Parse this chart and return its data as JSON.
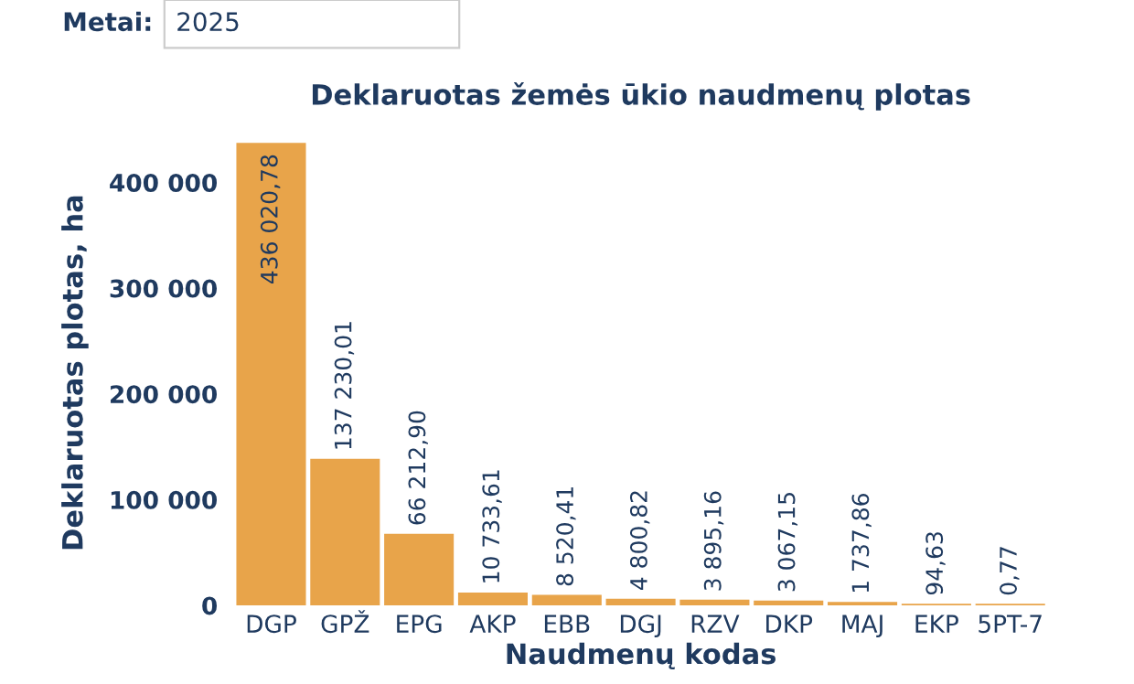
{
  "chart_data": {
    "type": "bar",
    "title": "Deklaruotas žemės ūkio naudmenų plotas",
    "xlabel": "Naudmenų kodas",
    "ylabel": "Deklaruotas plotas, ha",
    "annotations": [
      "Metai:",
      "2025"
    ],
    "categories": [
      "DGP",
      "GPŽ",
      "EPG",
      "AKP",
      "EBB",
      "DGJ",
      "RZV",
      "DKP",
      "MAJ",
      "EKP",
      "5PT-7"
    ],
    "values": [
      436020.78,
      137230.01,
      66212.9,
      10733.61,
      8520.41,
      4800.82,
      3895.16,
      3067.15,
      1737.86,
      94.63,
      0.77
    ],
    "value_labels": [
      "436 020,78",
      "137 230,01",
      "66 212,90",
      "10 733,61",
      "8 520,41",
      "4 800,82",
      "3 895,16",
      "3 067,15",
      "1 737,86",
      "94,63",
      "0,77"
    ],
    "color": "#e8a44a",
    "ylim": [
      0,
      440000
    ],
    "yticks": [
      {
        "value": 0,
        "label": "0"
      },
      {
        "value": 100000,
        "label": "100 000"
      },
      {
        "value": 200000,
        "label": "200 000"
      },
      {
        "value": 300000,
        "label": "300 000"
      },
      {
        "value": 400000,
        "label": "400 000"
      }
    ],
    "grid": false,
    "legend": false
  }
}
